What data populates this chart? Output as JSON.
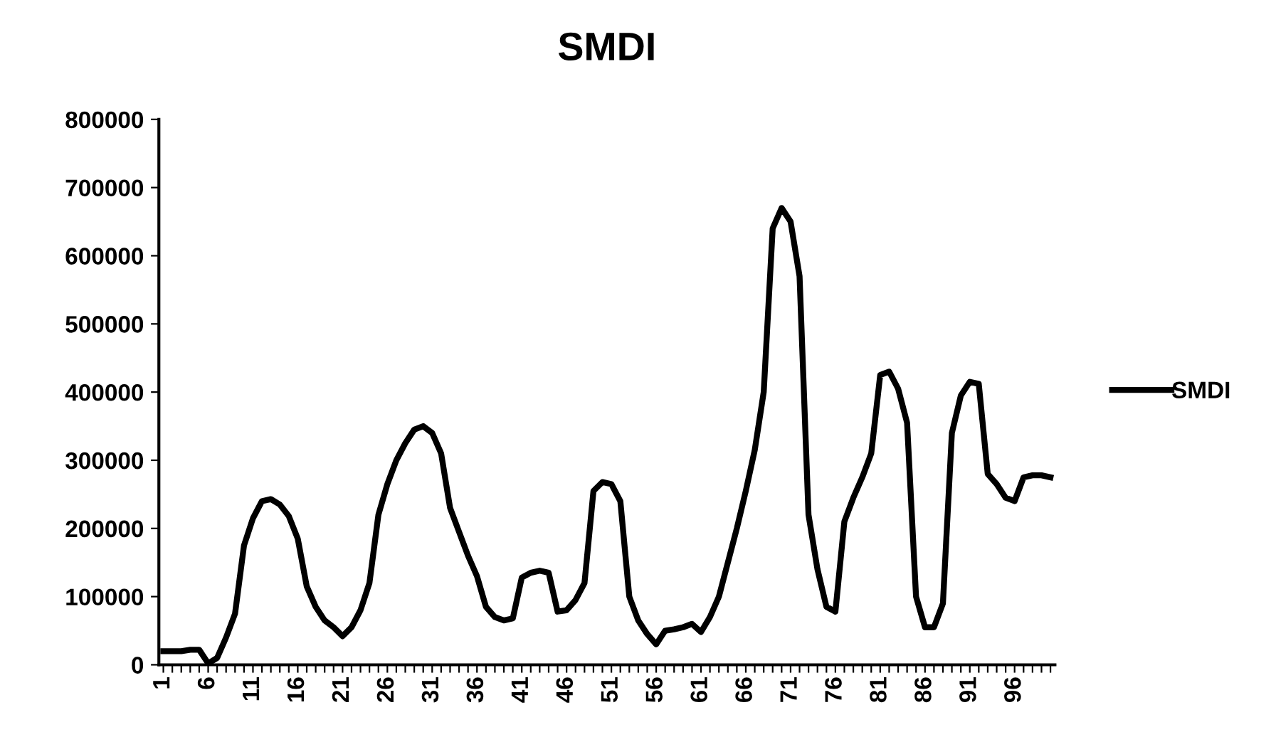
{
  "chart_data": {
    "type": "line",
    "title": "SMDI",
    "categories": [
      "1",
      null,
      null,
      null,
      null,
      "6",
      null,
      null,
      null,
      null,
      "11",
      null,
      null,
      null,
      null,
      "16",
      null,
      null,
      null,
      null,
      "21",
      null,
      null,
      null,
      null,
      "26",
      null,
      null,
      null,
      null,
      "31",
      null,
      null,
      null,
      null,
      "36",
      null,
      null,
      null,
      null,
      "41",
      null,
      null,
      null,
      null,
      "46",
      null,
      null,
      null,
      null,
      "51",
      null,
      null,
      null,
      null,
      "56",
      null,
      null,
      null,
      null,
      "61",
      null,
      null,
      null,
      null,
      "66",
      null,
      null,
      null,
      null,
      "71",
      null,
      null,
      null,
      null,
      "76",
      null,
      null,
      null,
      null,
      "81",
      null,
      null,
      null,
      null,
      "86",
      null,
      null,
      null,
      null,
      "91",
      null,
      null,
      null,
      null,
      "96",
      null,
      null,
      null,
      null
    ],
    "series": [
      {
        "name": "SMDI",
        "color": "#000000",
        "values": [
          20000,
          20000,
          20000,
          22000,
          22000,
          2000,
          10000,
          40000,
          75000,
          175000,
          215000,
          240000,
          243000,
          235000,
          218000,
          185000,
          115000,
          85000,
          65000,
          55000,
          42000,
          55000,
          80000,
          120000,
          220000,
          265000,
          300000,
          325000,
          345000,
          350000,
          340000,
          310000,
          230000,
          195000,
          160000,
          130000,
          85000,
          70000,
          65000,
          68000,
          128000,
          135000,
          138000,
          135000,
          78000,
          80000,
          95000,
          120000,
          255000,
          268000,
          265000,
          240000,
          100000,
          65000,
          45000,
          30000,
          50000,
          52000,
          55000,
          60000,
          48000,
          70000,
          100000,
          150000,
          200000,
          255000,
          315000,
          400000,
          640000,
          670000,
          650000,
          570000,
          220000,
          140000,
          85000,
          78000,
          210000,
          245000,
          275000,
          310000,
          425000,
          430000,
          405000,
          355000,
          100000,
          55000,
          55000,
          90000,
          340000,
          395000,
          415000,
          412000,
          280000,
          265000,
          245000,
          240000,
          275000,
          278000,
          278000,
          275000
        ]
      }
    ],
    "ylim": [
      0,
      800000
    ],
    "yticks": [
      0,
      100000,
      200000,
      300000,
      400000,
      500000,
      600000,
      700000,
      800000
    ],
    "grid": false,
    "legend": "right",
    "marker": "none",
    "line_style": "solid"
  }
}
